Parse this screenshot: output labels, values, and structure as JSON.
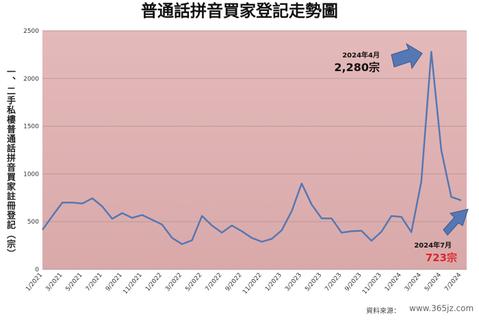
{
  "chart_data": {
    "type": "line",
    "title": "普通話拼音買家登記走勢圖",
    "y_label": "一、二手私樓普通話拼音買家註冊登記（宗）",
    "categories": [
      "1/2021",
      null,
      "3/2021",
      null,
      "5/2021",
      null,
      "7/2021",
      null,
      "9/2021",
      null,
      "11/2021",
      null,
      "1/2022",
      null,
      "3/2022",
      null,
      "5/2022",
      null,
      "7/2022",
      null,
      "9/2022",
      null,
      "11/2022",
      null,
      "1/2023",
      null,
      "3/2023",
      null,
      "5/2023",
      null,
      "7/2023",
      null,
      "9/2023",
      null,
      "11/2023",
      null,
      "1/2024",
      null,
      "3/2024",
      null,
      "5/2024",
      null,
      "7/2024"
    ],
    "series": [
      {
        "name": "登記",
        "color": "#5577b3",
        "values": [
          415,
          560,
          700,
          700,
          690,
          745,
          660,
          530,
          590,
          540,
          570,
          520,
          470,
          330,
          265,
          305,
          560,
          460,
          385,
          460,
          400,
          330,
          290,
          320,
          410,
          610,
          900,
          680,
          535,
          535,
          385,
          400,
          405,
          300,
          395,
          560,
          550,
          390,
          920,
          2280,
          1250,
          760,
          723
        ]
      }
    ],
    "ylim": [
      0,
      2500
    ],
    "yticks": [
      0,
      500,
      1000,
      1500,
      2000,
      2500
    ],
    "grid": true,
    "annotations": [
      {
        "date": "2024年4月",
        "value": "2,280宗"
      },
      {
        "date": "2024年7月",
        "value": "723宗"
      }
    ],
    "source": "資料來源：",
    "watermark": "www.365jz.com"
  }
}
